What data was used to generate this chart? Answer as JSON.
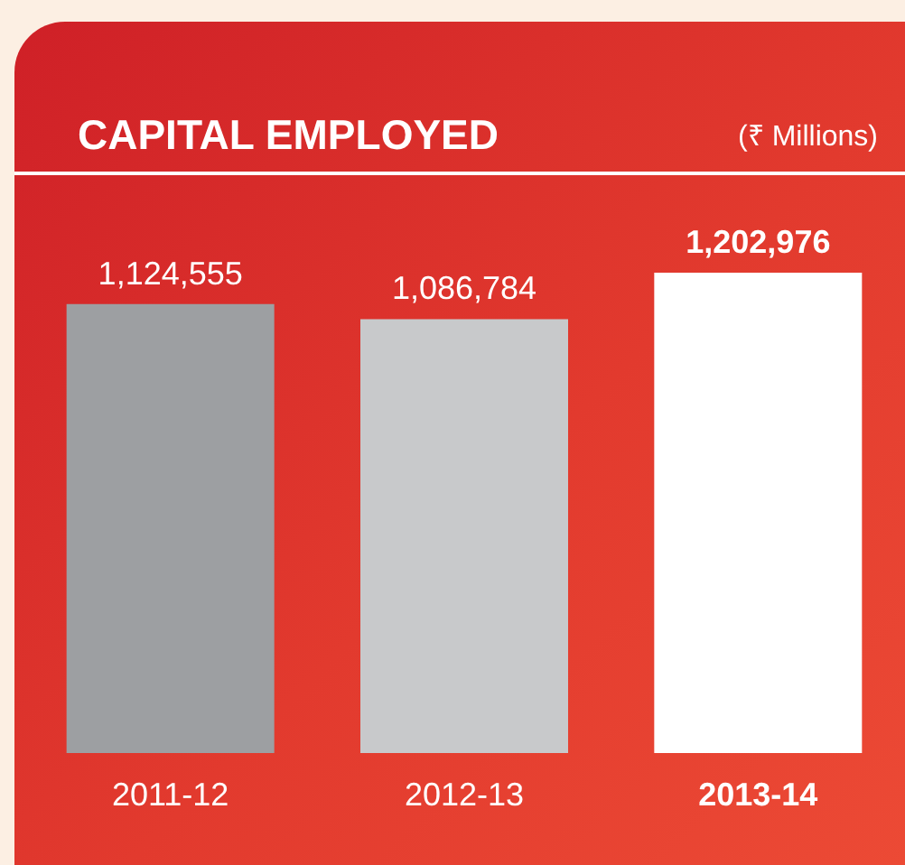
{
  "chart_data": {
    "type": "bar",
    "title": "CAPITAL EMPLOYED",
    "subtitle": "(₹ Millions)",
    "categories": [
      "2011-12",
      "2012-13",
      "2013-14"
    ],
    "values": [
      1124555,
      1086784,
      1202976
    ],
    "colors": [
      "#9d9fa2",
      "#c8c9cb",
      "#ffffff"
    ],
    "value_labels": [
      "1,124,555",
      "1,086,784",
      "1,202,976"
    ]
  }
}
